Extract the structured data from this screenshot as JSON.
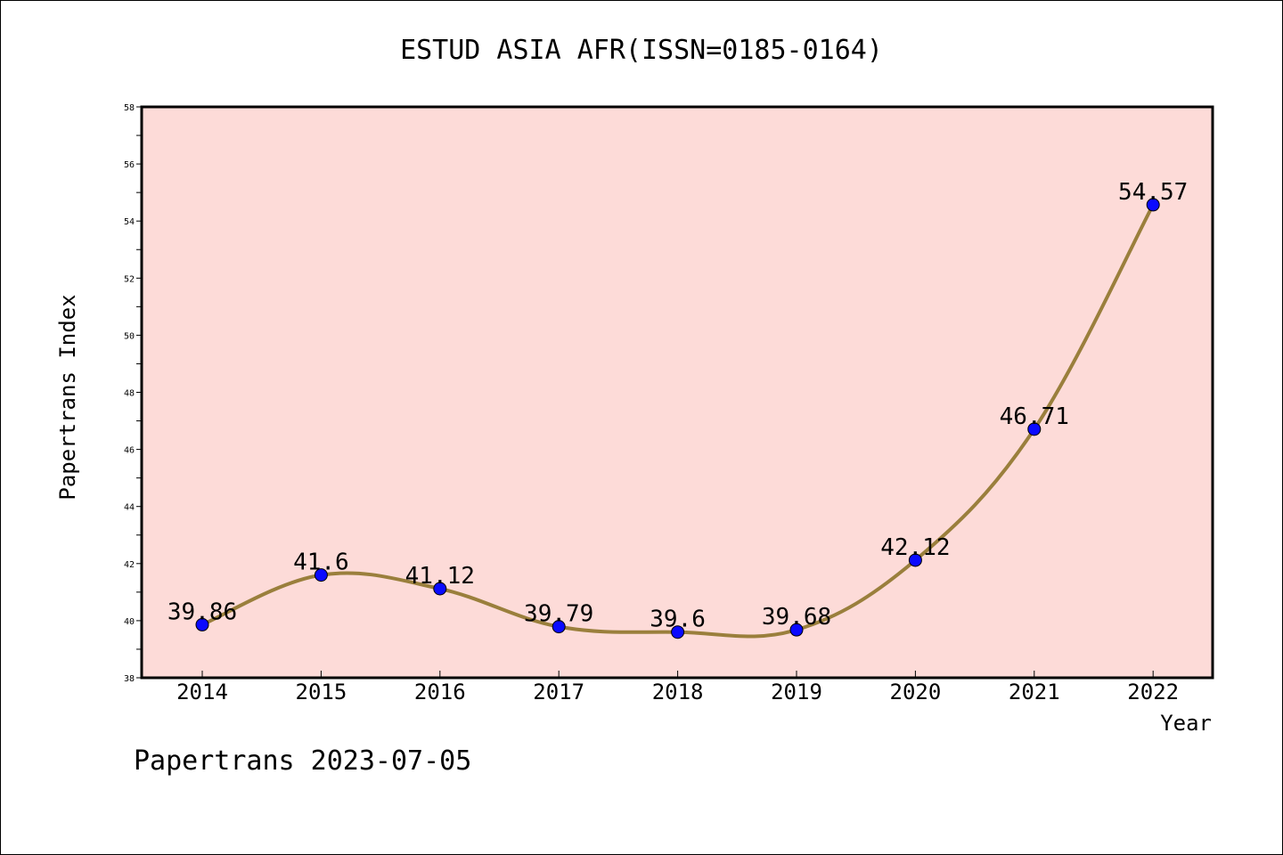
{
  "chart_data": {
    "type": "line",
    "title": "ESTUD ASIA AFR(ISSN=0185-0164)",
    "xlabel": "Year",
    "ylabel": "Papertrans Index",
    "categories": [
      "2014",
      "2015",
      "2016",
      "2017",
      "2018",
      "2019",
      "2020",
      "2021",
      "2022"
    ],
    "values": [
      39.86,
      41.6,
      41.12,
      39.79,
      39.6,
      39.68,
      42.12,
      46.71,
      54.57
    ],
    "data_labels": [
      "39.86",
      "41.6",
      "41.12",
      "39.79",
      "39.6",
      "39.68",
      "42.12",
      "46.71",
      "54.57"
    ],
    "ylim": [
      38,
      58
    ],
    "yticks": [
      "38",
      "40",
      "42",
      "44",
      "46",
      "48",
      "50",
      "52",
      "54",
      "56",
      "58"
    ],
    "grid": false,
    "colors": {
      "plot_background": "#fddbd8",
      "line": "#9a7f3c",
      "marker": "#0a0aff",
      "frame": "#000000"
    }
  },
  "footer": "Papertrans 2023-07-05"
}
